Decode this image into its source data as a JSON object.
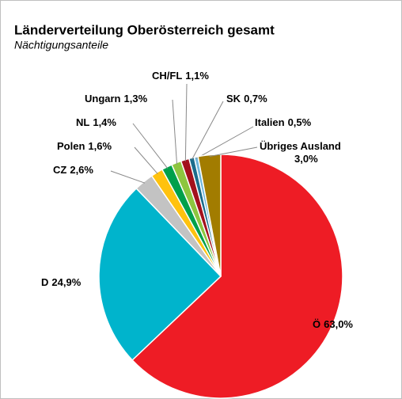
{
  "chart_data": {
    "type": "pie",
    "title": "Länderverteilung Oberösterreich gesamt",
    "subtitle": "Nächtigungsanteile",
    "categories": [
      "Ö",
      "D",
      "CZ",
      "Polen",
      "NL",
      "Ungarn",
      "CH/FL",
      "SK",
      "Italien",
      "Übriges Ausland"
    ],
    "values": [
      63.0,
      24.9,
      2.6,
      1.6,
      1.4,
      1.3,
      1.1,
      0.7,
      0.5,
      3.0
    ],
    "value_labels": [
      "63,0%",
      "24,9%",
      "2,6%",
      "1,6%",
      "1,4%",
      "1,3%",
      "1,1%",
      "0,7%",
      "0,5%",
      "3,0%"
    ],
    "colors": [
      "#ee1c25",
      "#00b4cc",
      "#c3c3c3",
      "#ffc20e",
      "#00a04b",
      "#8dc63f",
      "#a3111c",
      "#1b6c8c",
      "#6fb7dc",
      "#a27c00"
    ]
  }
}
